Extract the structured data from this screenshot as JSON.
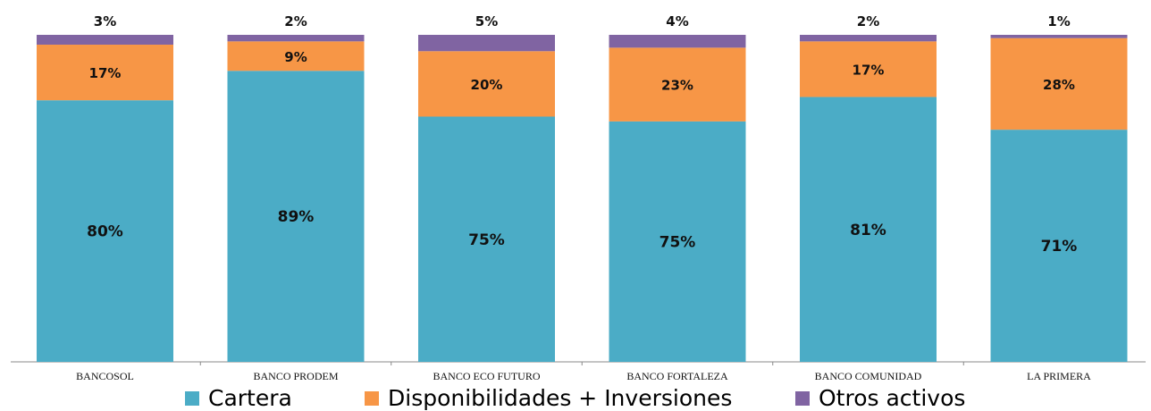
{
  "chart_data": {
    "type": "bar",
    "stacked": true,
    "categories": [
      "BANCOSOL",
      "BANCO PRODEM",
      "BANCO ECO FUTURO",
      "BANCO FORTALEZA",
      "BANCO COMUNIDAD",
      "LA PRIMERA"
    ],
    "series": [
      {
        "name": "Cartera",
        "values": [
          80,
          89,
          75,
          75,
          81,
          71
        ],
        "labels": [
          "80%",
          "89%",
          "75%",
          "75%",
          "81%",
          "71%"
        ],
        "color": "#4bacc6"
      },
      {
        "name": "Disponibilidades + Inversiones",
        "values": [
          17,
          9,
          20,
          23,
          17,
          28
        ],
        "labels": [
          "17%",
          "9%",
          "20%",
          "23%",
          "17%",
          "28%"
        ],
        "color": "#f79646"
      },
      {
        "name": "Otros activos",
        "values": [
          3,
          2,
          5,
          4,
          2,
          1
        ],
        "labels": [
          "3%",
          "2%",
          "5%",
          "4%",
          "2%",
          "1%"
        ],
        "color": "#8064a2"
      }
    ],
    "legend_position": "bottom",
    "grid": false
  }
}
